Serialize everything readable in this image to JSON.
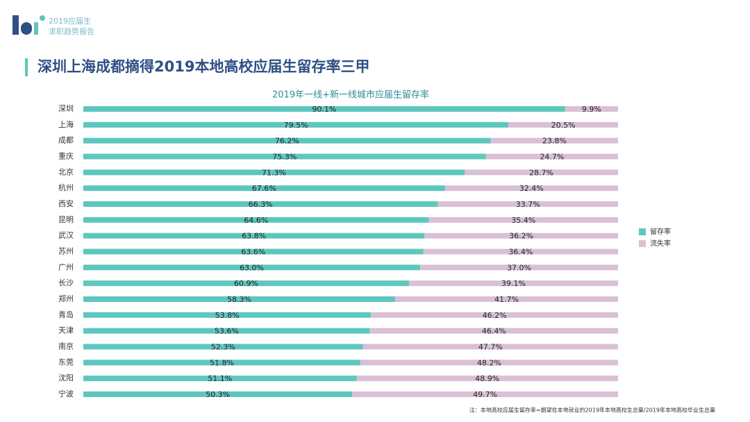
{
  "header": {
    "logo_line1": "2019应届生",
    "logo_line2": "求职趋势报告",
    "title": "深圳上海成都摘得2019本地高校应届生留存率三甲"
  },
  "chart_data": {
    "type": "stacked_hbar",
    "title": "2019年一线+新一线城市应届生留存率",
    "categories": [
      "深圳",
      "上海",
      "成都",
      "重庆",
      "北京",
      "杭州",
      "西安",
      "昆明",
      "武汉",
      "苏州",
      "广州",
      "长沙",
      "郑州",
      "青岛",
      "天津",
      "南京",
      "东莞",
      "沈阳",
      "宁波"
    ],
    "xlim": [
      0,
      100
    ],
    "legend": "right",
    "series": [
      {
        "name": "留存率",
        "color": "#5dc7bd",
        "values": [
          90.1,
          79.5,
          76.2,
          75.3,
          71.3,
          67.6,
          66.3,
          64.6,
          63.8,
          63.6,
          63.0,
          60.9,
          58.3,
          53.8,
          53.6,
          52.3,
          51.8,
          51.1,
          50.3
        ],
        "value_labels": [
          "90.1%",
          "79.5%",
          "76.2%",
          "75.3%",
          "71.3%",
          "67.6%",
          "66.3%",
          "64.6%",
          "63.8%",
          "63.6%",
          "63.0%",
          "60.9%",
          "58.3%",
          "53.8%",
          "53.6%",
          "52.3%",
          "51.8%",
          "51.1%",
          "50.3%"
        ]
      },
      {
        "name": "流失率",
        "color": "#d9c0d5",
        "values": [
          9.9,
          20.5,
          23.8,
          24.7,
          28.7,
          32.4,
          33.7,
          35.4,
          36.2,
          36.4,
          37.0,
          39.1,
          41.7,
          46.2,
          46.4,
          47.7,
          48.2,
          48.9,
          49.7
        ],
        "value_labels": [
          "9.9%",
          "20.5%",
          "23.8%",
          "24.7%",
          "28.7%",
          "32.4%",
          "33.7%",
          "35.4%",
          "36.2%",
          "36.4%",
          "37.0%",
          "39.1%",
          "41.7%",
          "46.2%",
          "46.4%",
          "47.7%",
          "48.2%",
          "48.9%",
          "49.7%"
        ]
      }
    ],
    "note": "注：本地高校应届生留存率=期望在本地就业的2019年本地高校生总量/2019年本地高校毕业生总量"
  }
}
